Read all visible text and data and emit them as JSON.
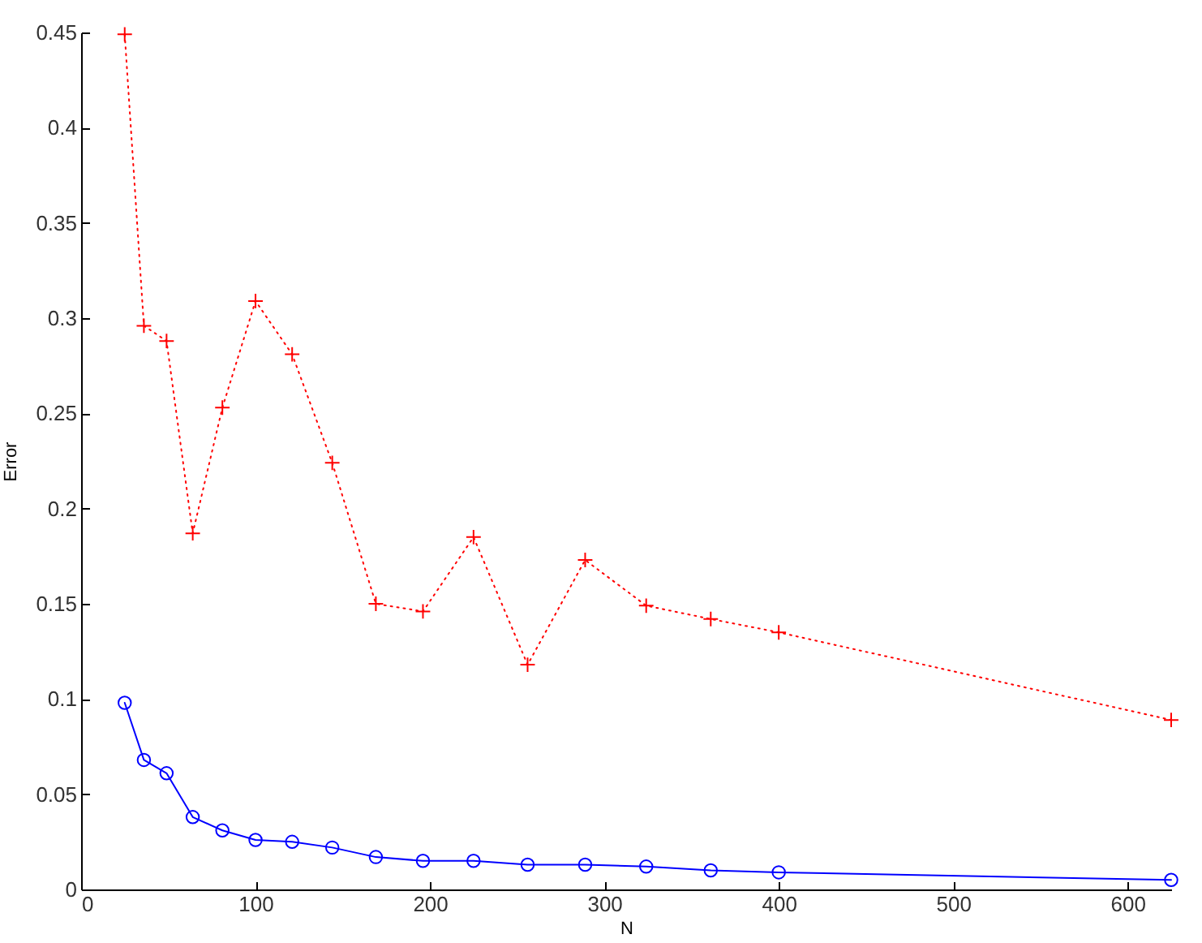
{
  "chart_data": {
    "type": "line",
    "xlabel": "N",
    "ylabel": "Error",
    "x": [
      25,
      36,
      49,
      64,
      81,
      100,
      121,
      144,
      169,
      196,
      225,
      256,
      289,
      324,
      361,
      400,
      625
    ],
    "xlim": [
      0,
      625
    ],
    "xticks": [
      0,
      100,
      200,
      300,
      400,
      500,
      600
    ],
    "ylim": [
      0,
      0.45
    ],
    "yticks": [
      0,
      0.05,
      0.1,
      0.15,
      0.2,
      0.25,
      0.3,
      0.35,
      0.4,
      0.45
    ],
    "grid": false,
    "series": [
      {
        "color": "#ff0000",
        "marker": "cross",
        "line_style": "dotted",
        "values": [
          0.449,
          0.296,
          0.288,
          0.187,
          0.253,
          0.309,
          0.281,
          0.224,
          0.15,
          0.146,
          0.185,
          0.118,
          0.173,
          0.149,
          0.142,
          0.135,
          0.089
        ]
      },
      {
        "color": "#0000ff",
        "marker": "circle",
        "line_style": "solid",
        "values": [
          0.098,
          0.068,
          0.061,
          0.038,
          0.031,
          0.026,
          0.025,
          0.022,
          0.017,
          0.015,
          0.015,
          0.013,
          0.013,
          0.012,
          0.01,
          0.009,
          0.005
        ]
      }
    ]
  }
}
